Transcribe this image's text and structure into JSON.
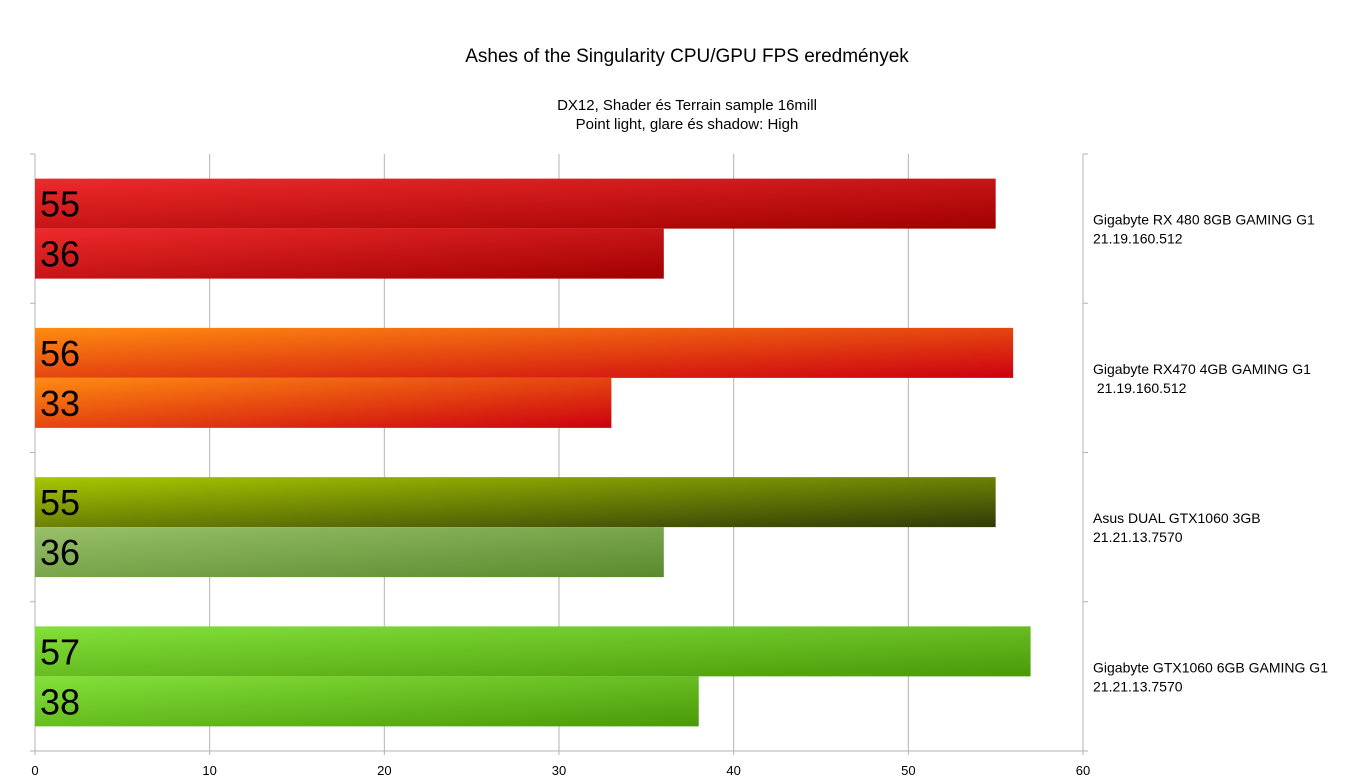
{
  "chart_data": {
    "type": "bar",
    "orientation": "horizontal",
    "title": "Ashes of the Singularity CPU/GPU FPS eredmények",
    "subtitle_lines": [
      "DX12, Shader és Terrain sample 16mill",
      "Point light, glare és shadow: High"
    ],
    "xlim": [
      0,
      60
    ],
    "x_ticks": [
      "0",
      "10",
      "20",
      "30",
      "40",
      "50",
      "60"
    ],
    "grid": true,
    "categories": [
      {
        "label_lines": [
          "Gigabyte RX 480 8GB GAMING G1",
          "21.19.160.512"
        ],
        "values": [
          55,
          36
        ],
        "colors": [
          [
            "#ee2a2c",
            "#a10000"
          ],
          [
            "#ee2a2c",
            "#a10000"
          ]
        ]
      },
      {
        "label_lines": [
          "Gigabyte RX470 4GB GAMING G1",
          " 21.19.160.512"
        ],
        "values": [
          56,
          33
        ],
        "colors": [
          [
            "#ff8c10",
            "#cc0010"
          ],
          [
            "#ff8c10",
            "#cc0010"
          ]
        ]
      },
      {
        "label_lines": [
          "Asus DUAL GTX1060 3GB",
          "21.21.13.7570"
        ],
        "values": [
          55,
          36
        ],
        "colors": [
          [
            "#a8c800",
            "#2f3a08"
          ],
          [
            "#98c068",
            "#5a8a2e"
          ]
        ]
      },
      {
        "label_lines": [
          "Gigabyte GTX1060 6GB GAMING G1",
          "21.21.13.7570"
        ],
        "values": [
          57,
          38
        ],
        "colors": [
          [
            "#84e03a",
            "#4a9a08"
          ],
          [
            "#84e03a",
            "#4a9a08"
          ]
        ]
      }
    ]
  }
}
